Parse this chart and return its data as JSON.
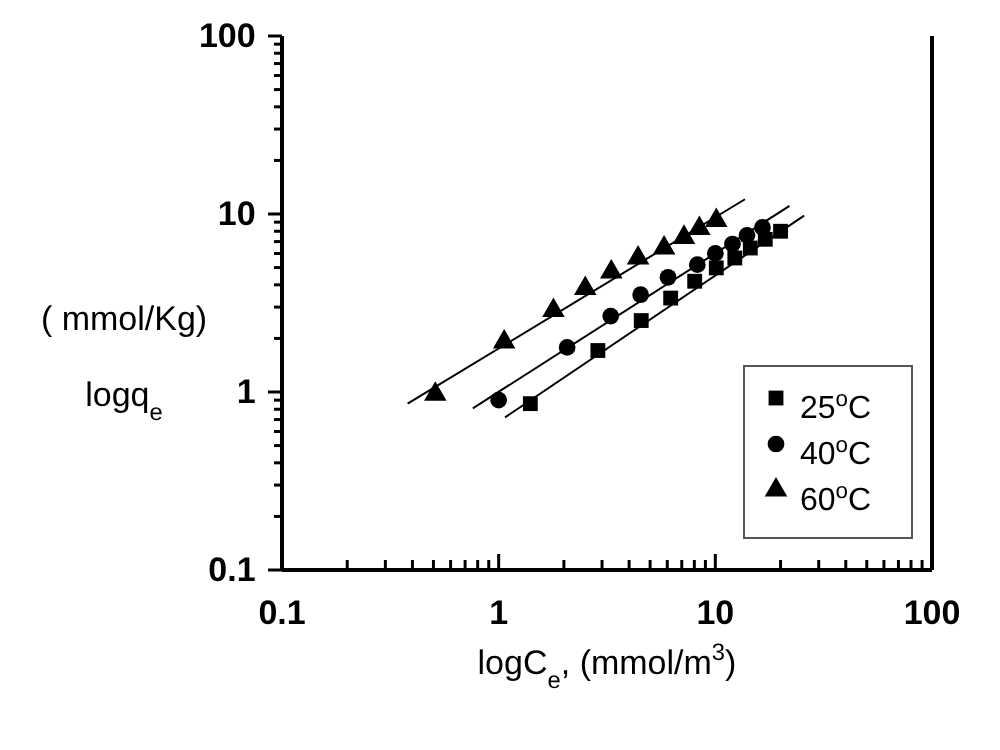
{
  "chart_data": {
    "type": "scatter",
    "xlabel": "logC$_{e}$, (mmol/m$^{3}$)",
    "ylabel": "( mmol/Kg)\nlogq$_{e}$",
    "log": "xy",
    "legend": "bottom right",
    "xlim": [
      0.1,
      100
    ],
    "ylim": [
      0.1,
      100
    ],
    "xticks": [
      0.1,
      {
        "value": 0.2,
        "label": null
      },
      {
        "value": 0.3,
        "label": null
      },
      {
        "value": 0.4,
        "label": null
      },
      {
        "value": 0.5,
        "label": null
      },
      {
        "value": 0.6,
        "label": null
      },
      {
        "value": 0.7,
        "label": null
      },
      {
        "value": 0.8,
        "label": null
      },
      {
        "value": 0.9,
        "label": null
      },
      1,
      {
        "value": 2,
        "label": null
      },
      {
        "value": 3,
        "label": null
      },
      {
        "value": 4,
        "label": null
      },
      {
        "value": 5,
        "label": null
      },
      {
        "value": 6,
        "label": null
      },
      {
        "value": 7,
        "label": null
      },
      {
        "value": 8,
        "label": null
      },
      {
        "value": 9,
        "label": null
      },
      10,
      {
        "value": 20,
        "label": null
      },
      {
        "value": 30,
        "label": null
      },
      {
        "value": 40,
        "label": null
      },
      {
        "value": 50,
        "label": null
      },
      {
        "value": 60,
        "label": null
      },
      {
        "value": 70,
        "label": null
      },
      {
        "value": 80,
        "label": null
      },
      {
        "value": 90,
        "label": null
      },
      100
    ],
    "yticks": [
      0.1,
      {
        "value": 0.2,
        "label": null
      },
      {
        "value": 0.3,
        "label": null
      },
      {
        "value": 0.4,
        "label": null
      },
      {
        "value": 0.5,
        "label": null
      },
      {
        "value": 0.6,
        "label": null
      },
      {
        "value": 0.7,
        "label": null
      },
      {
        "value": 0.8,
        "label": null
      },
      {
        "value": 0.9,
        "label": null
      },
      1,
      {
        "value": 2,
        "label": null
      },
      {
        "value": 3,
        "label": null
      },
      {
        "value": 4,
        "label": null
      },
      {
        "value": 5,
        "label": null
      },
      {
        "value": 6,
        "label": null
      },
      {
        "value": 7,
        "label": null
      },
      {
        "value": 8,
        "label": null
      },
      {
        "value": 9,
        "label": null
      },
      10,
      {
        "value": 20,
        "label": null
      },
      {
        "value": 30,
        "label": null
      },
      {
        "value": 40,
        "label": null
      },
      {
        "value": 50,
        "label": null
      },
      {
        "value": 60,
        "label": null
      },
      {
        "value": 70,
        "label": null
      },
      {
        "value": 80,
        "label": null
      },
      {
        "value": 90,
        "label": null
      },
      100
    ],
    "series": [
      {
        "name": "25$^{o}$C",
        "marker": "square",
        "color": "#000000",
        "x": [
          1.4,
          2.87,
          4.55,
          6.22,
          8.03,
          10.1,
          12.3,
          14.5,
          17.0,
          20.0
        ],
        "values": [
          0.86,
          1.71,
          2.52,
          3.37,
          4.19,
          4.98,
          5.66,
          6.44,
          7.21,
          8.0
        ]
      },
      {
        "name": "40$^{o}$C",
        "marker": "circle",
        "color": "#000000",
        "x": [
          1.0,
          2.07,
          3.29,
          4.52,
          6.05,
          8.26,
          10.0,
          12.0,
          14.0,
          16.5
        ],
        "values": [
          0.9,
          1.78,
          2.67,
          3.52,
          4.41,
          5.19,
          6.01,
          6.78,
          7.59,
          8.41
        ]
      },
      {
        "name": "60$^{o}$C",
        "marker": "triangle",
        "color": "#000000",
        "x": [
          0.51,
          1.06,
          1.79,
          2.51,
          3.31,
          4.4,
          5.8,
          7.17,
          8.44,
          10.1
        ],
        "values": [
          0.97,
          1.91,
          2.87,
          3.81,
          4.72,
          5.66,
          6.45,
          7.39,
          8.28,
          9.19
        ]
      },
      {
        "type": "line",
        "marker": "none",
        "line_style": "solid",
        "color": "#000000",
        "x": [
          1.07,
          25.7
        ],
        "values": [
          0.72,
          9.8
        ]
      },
      {
        "type": "line",
        "marker": "none",
        "line_style": "solid",
        "color": "#000000",
        "x": [
          0.76,
          22.0
        ],
        "values": [
          0.81,
          11.1
        ]
      },
      {
        "type": "line",
        "marker": "none",
        "line_style": "solid",
        "color": "#000000",
        "x": [
          0.38,
          13.7
        ],
        "values": [
          0.86,
          12.1
        ]
      }
    ]
  }
}
